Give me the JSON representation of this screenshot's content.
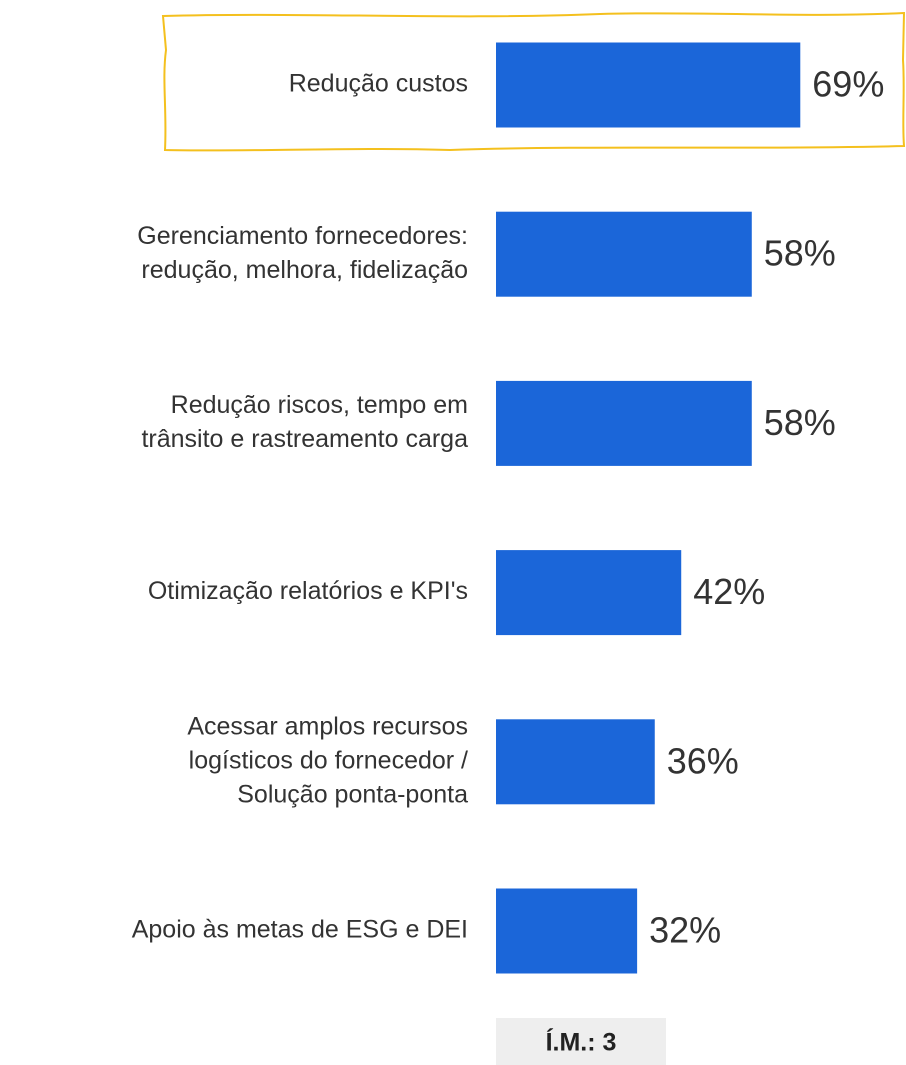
{
  "chart_data": {
    "type": "bar",
    "orientation": "horizontal",
    "categories": [
      [
        "Redução custos"
      ],
      [
        "Gerenciamento fornecedores:",
        "redução, melhora, fidelização"
      ],
      [
        "Redução riscos, tempo em",
        "trânsito e rastreamento carga"
      ],
      [
        "Otimização relatórios e KPI's"
      ],
      [
        "Acessar amplos recursos",
        "logísticos do fornecedor /",
        "Solução ponta-ponta"
      ],
      [
        "Apoio às metas de ESG e DEI"
      ]
    ],
    "values": [
      69,
      58,
      58,
      42,
      36,
      32
    ],
    "value_labels": [
      "69%",
      "58%",
      "58%",
      "42%",
      "36%",
      "32%"
    ],
    "color": "#1b66d9",
    "xlim": [
      0,
      100
    ],
    "note": "Í.M.: 3"
  }
}
